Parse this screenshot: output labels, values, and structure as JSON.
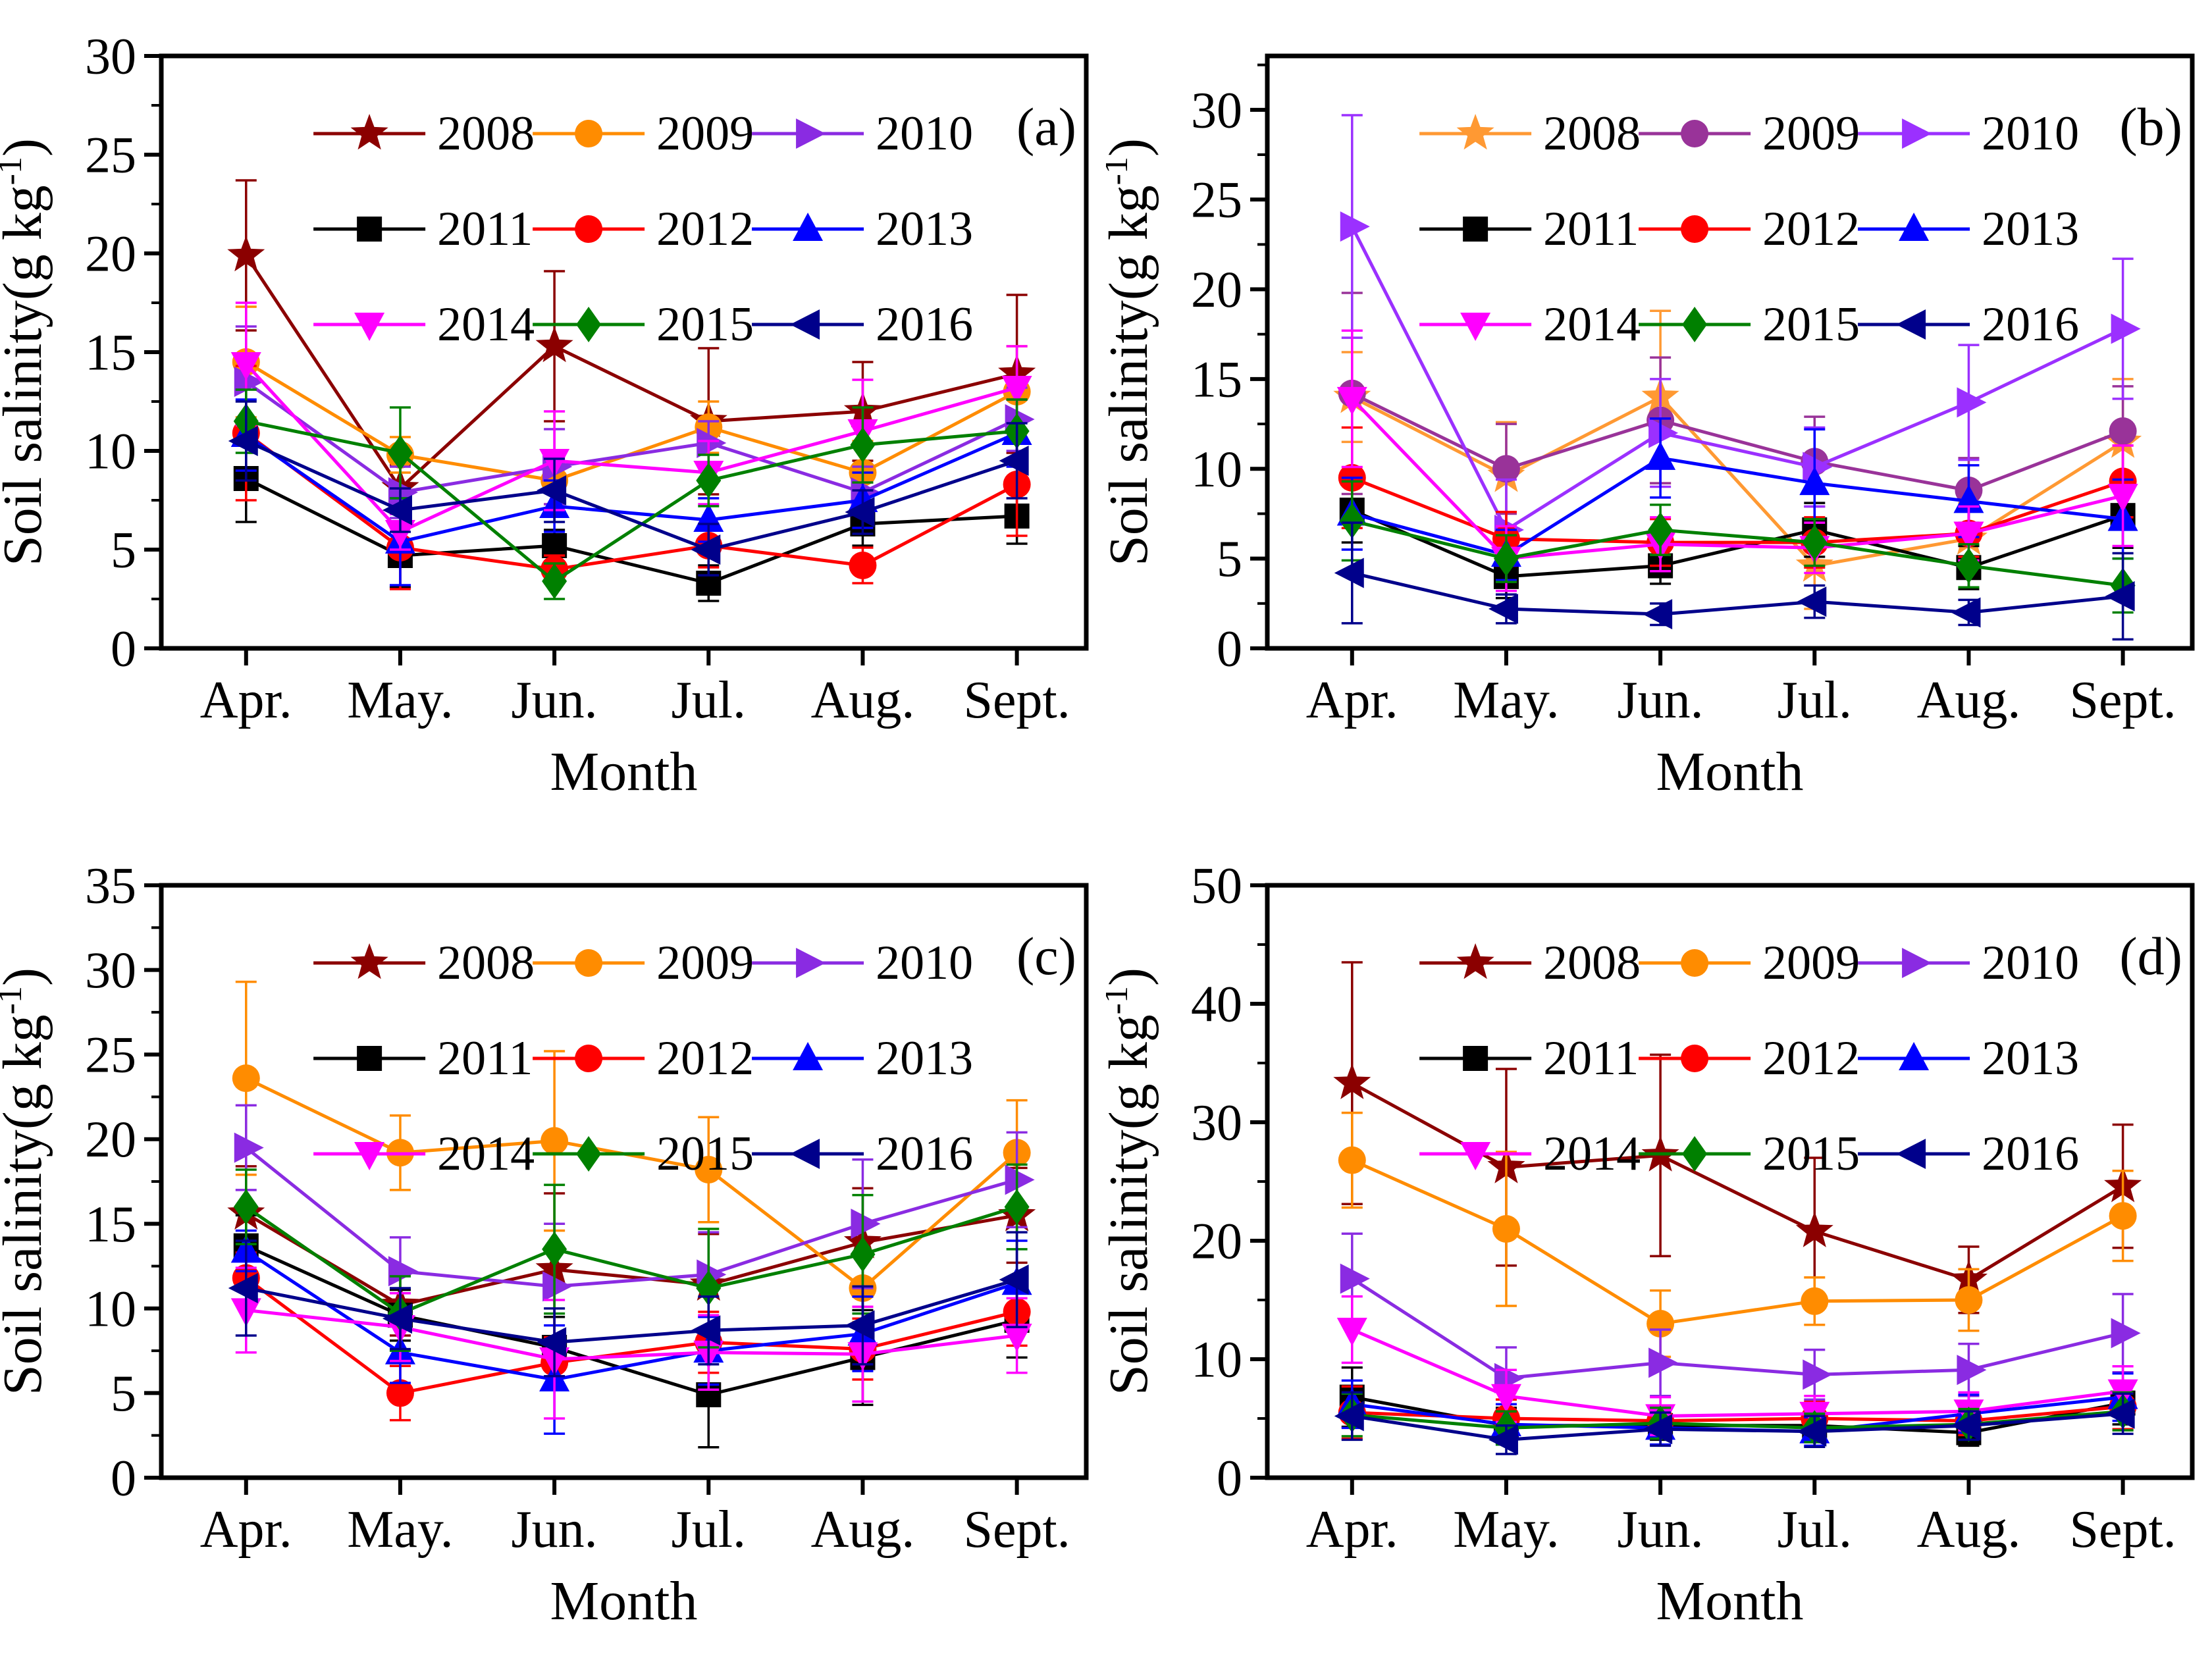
{
  "figure": {
    "background": "#ffffff",
    "months": [
      "Apr.",
      "May.",
      "Jun.",
      "Jul.",
      "Aug.",
      "Sept."
    ],
    "xlabel": "Month",
    "ylabel_main": "Soil salinity(g kg",
    "ylabel_sup": "-1",
    "ylabel_close": ")",
    "ylabel_full": "Soil salinity(g kg⁻¹)",
    "legend_years": [
      "2008",
      "2009",
      "2010",
      "2011",
      "2012",
      "2013",
      "2014",
      "2015",
      "2016"
    ]
  },
  "chart_data": [
    {
      "type": "line",
      "label": "(a)",
      "xlabel": "Month",
      "ylabel": "Soil salinity(g kg⁻¹)",
      "categories": [
        "Apr.",
        "May.",
        "Jun.",
        "Jul.",
        "Aug.",
        "Sept."
      ],
      "ylim": [
        0,
        30
      ],
      "ytick_step": 5,
      "minor_step": 2.5,
      "legend_position": "top-inside",
      "grid": false,
      "series": [
        {
          "name": "2008",
          "color": "#8B0000",
          "marker": "star",
          "values": [
            19.9,
            8.1,
            15.3,
            11.5,
            12.0,
            13.9
          ],
          "err": [
            3.8,
            1.2,
            3.8,
            3.7,
            2.5,
            4.0
          ]
        },
        {
          "name": "2009",
          "color": "#FF8C00",
          "marker": "circle",
          "values": [
            14.5,
            9.8,
            8.5,
            11.2,
            8.9,
            13.0
          ],
          "err": [
            2.8,
            0.9,
            1.2,
            1.3,
            1.6,
            2.3
          ]
        },
        {
          "name": "2010",
          "color": "#8A2BE2",
          "marker": "tri-right",
          "values": [
            13.5,
            7.9,
            9.2,
            10.4,
            7.9,
            11.6
          ],
          "err": [
            2.8,
            1.3,
            1.9,
            1.1,
            1.3,
            1.6
          ]
        },
        {
          "name": "2011",
          "color": "#000000",
          "marker": "square",
          "values": [
            8.6,
            4.7,
            5.2,
            3.3,
            6.3,
            6.7
          ],
          "err": [
            2.2,
            1.6,
            0.8,
            0.9,
            1.1,
            1.4
          ]
        },
        {
          "name": "2012",
          "color": "#FF0000",
          "marker": "circle",
          "values": [
            10.9,
            5.1,
            4.0,
            5.2,
            4.2,
            8.3
          ],
          "err": [
            3.4,
            2.1,
            0.7,
            1.1,
            0.9,
            2.6
          ]
        },
        {
          "name": "2013",
          "color": "#0000FF",
          "marker": "tri-up",
          "values": [
            10.8,
            5.4,
            7.2,
            6.5,
            7.5,
            10.9
          ],
          "err": [
            1.8,
            2.2,
            1.3,
            1.1,
            1.4,
            1.7
          ]
        },
        {
          "name": "2014",
          "color": "#FF00FF",
          "marker": "tri-down",
          "values": [
            14.4,
            5.9,
            9.5,
            8.9,
            11.0,
            13.2
          ],
          "err": [
            3.1,
            0.9,
            2.5,
            1.6,
            2.6,
            2.1
          ]
        },
        {
          "name": "2015",
          "color": "#008000",
          "marker": "diamond",
          "values": [
            11.5,
            9.9,
            3.4,
            8.5,
            10.3,
            11.0
          ],
          "err": [
            1.6,
            2.3,
            0.9,
            1.3,
            1.9,
            1.6
          ]
        },
        {
          "name": "2016",
          "color": "#00008B",
          "marker": "tri-left",
          "values": [
            10.5,
            7.0,
            8.0,
            5.0,
            6.9,
            9.5
          ],
          "err": [
            2.0,
            1.1,
            1.6,
            1.3,
            1.1,
            1.9
          ]
        }
      ]
    },
    {
      "type": "line",
      "label": "(b)",
      "xlabel": "Month",
      "ylabel": "Soil salinity(g kg⁻¹)",
      "categories": [
        "Apr.",
        "May.",
        "Jun.",
        "Jul.",
        "Aug.",
        "Sept."
      ],
      "ylim": [
        0,
        33
      ],
      "ytick_step": 5,
      "minor_step": 2.5,
      "legend_position": "top-inside",
      "grid": false,
      "series": [
        {
          "name": "2008",
          "color": "#FF9933",
          "marker": "star",
          "values": [
            14.0,
            9.6,
            14.0,
            4.6,
            6.1,
            11.5
          ],
          "err": [
            2.5,
            3.0,
            4.8,
            2.4,
            2.0,
            3.5
          ]
        },
        {
          "name": "2009",
          "color": "#993399",
          "marker": "circle",
          "values": [
            14.2,
            10.0,
            12.7,
            10.4,
            8.8,
            12.1
          ],
          "err": [
            5.6,
            2.5,
            3.5,
            2.5,
            1.8,
            2.5
          ]
        },
        {
          "name": "2010",
          "color": "#9B30FF",
          "marker": "tri-right",
          "values": [
            23.5,
            6.6,
            12.0,
            10.1,
            13.7,
            17.8
          ],
          "err": [
            6.2,
            2.8,
            3.0,
            2.2,
            3.2,
            3.9
          ]
        },
        {
          "name": "2011",
          "color": "#000000",
          "marker": "square",
          "values": [
            7.7,
            4.0,
            4.6,
            6.6,
            4.5,
            7.4
          ],
          "err": [
            1.8,
            1.2,
            1.0,
            1.5,
            1.2,
            1.8
          ]
        },
        {
          "name": "2012",
          "color": "#FF0000",
          "marker": "circle",
          "values": [
            9.5,
            6.1,
            5.9,
            5.9,
            6.4,
            9.3
          ],
          "err": [
            2.8,
            1.5,
            1.3,
            1.4,
            1.3,
            2.0
          ]
        },
        {
          "name": "2013",
          "color": "#0000FF",
          "marker": "tri-up",
          "values": [
            7.5,
            5.2,
            10.6,
            9.2,
            8.2,
            7.2
          ],
          "err": [
            2.0,
            1.4,
            2.2,
            3.0,
            2.0,
            2.2
          ]
        },
        {
          "name": "2014",
          "color": "#FF00FF",
          "marker": "tri-down",
          "values": [
            13.9,
            5.0,
            5.8,
            5.6,
            6.4,
            8.5
          ],
          "err": [
            3.8,
            1.8,
            1.5,
            1.4,
            1.5,
            2.8
          ]
        },
        {
          "name": "2015",
          "color": "#008000",
          "marker": "diamond",
          "values": [
            7.1,
            5.0,
            6.6,
            5.9,
            4.6,
            3.5
          ],
          "err": [
            2.2,
            1.3,
            1.4,
            1.3,
            1.2,
            1.5
          ]
        },
        {
          "name": "2016",
          "color": "#00008B",
          "marker": "tri-left",
          "values": [
            4.2,
            2.2,
            1.9,
            2.6,
            2.0,
            2.9
          ],
          "err": [
            2.8,
            0.8,
            0.6,
            0.9,
            0.7,
            2.4
          ]
        }
      ]
    },
    {
      "type": "line",
      "label": "(c)",
      "xlabel": "Month",
      "ylabel": "Soil salinity(g kg⁻¹)",
      "categories": [
        "Apr.",
        "May.",
        "Jun.",
        "Jul.",
        "Aug.",
        "Sept."
      ],
      "ylim": [
        0,
        35
      ],
      "ytick_step": 5,
      "minor_step": 2.5,
      "legend_position": "top-inside",
      "grid": false,
      "series": [
        {
          "name": "2008",
          "color": "#8B0000",
          "marker": "star",
          "values": [
            15.6,
            10.2,
            12.3,
            11.4,
            13.9,
            15.5
          ],
          "err": [
            2.8,
            1.8,
            4.5,
            3.0,
            3.2,
            2.8
          ]
        },
        {
          "name": "2009",
          "color": "#FF8C00",
          "marker": "circle",
          "values": [
            23.6,
            19.2,
            19.9,
            18.2,
            11.2,
            19.2
          ],
          "err": [
            5.7,
            2.2,
            5.3,
            3.1,
            2.0,
            3.1
          ]
        },
        {
          "name": "2010",
          "color": "#8A2BE2",
          "marker": "tri-right",
          "values": [
            19.5,
            12.2,
            11.3,
            12.0,
            15.0,
            17.6
          ],
          "err": [
            2.5,
            2.0,
            3.7,
            2.5,
            3.8,
            2.8
          ]
        },
        {
          "name": "2011",
          "color": "#000000",
          "marker": "square",
          "values": [
            13.7,
            9.6,
            7.7,
            4.9,
            7.1,
            9.3
          ],
          "err": [
            1.8,
            1.5,
            1.8,
            3.1,
            2.8,
            2.2
          ]
        },
        {
          "name": "2012",
          "color": "#FF0000",
          "marker": "circle",
          "values": [
            11.8,
            5.0,
            6.8,
            8.0,
            7.6,
            9.8
          ],
          "err": [
            1.5,
            1.6,
            1.5,
            1.8,
            1.8,
            2.0
          ]
        },
        {
          "name": "2013",
          "color": "#0000FF",
          "marker": "tri-up",
          "values": [
            13.4,
            7.4,
            5.8,
            7.5,
            8.5,
            11.5
          ],
          "err": [
            1.2,
            1.8,
            3.2,
            2.0,
            2.2,
            2.5
          ]
        },
        {
          "name": "2014",
          "color": "#FF00FF",
          "marker": "tri-down",
          "values": [
            9.9,
            8.9,
            7.0,
            7.4,
            7.3,
            8.4
          ],
          "err": [
            2.5,
            2.0,
            3.5,
            2.2,
            2.8,
            2.2
          ]
        },
        {
          "name": "2015",
          "color": "#008000",
          "marker": "diamond",
          "values": [
            16.0,
            9.7,
            13.5,
            11.2,
            13.2,
            16.0
          ],
          "err": [
            2.2,
            2.2,
            3.8,
            3.5,
            3.5,
            2.5
          ]
        },
        {
          "name": "2016",
          "color": "#00008B",
          "marker": "tri-left",
          "values": [
            11.2,
            9.4,
            8.0,
            8.7,
            9.0,
            11.7
          ],
          "err": [
            2.8,
            1.8,
            2.0,
            2.0,
            2.3,
            2.8
          ]
        }
      ]
    },
    {
      "type": "line",
      "label": "(d)",
      "xlabel": "Month",
      "ylabel": "Soil salinity(g kg⁻¹)",
      "categories": [
        "Apr.",
        "May.",
        "Jun.",
        "Jul.",
        "Aug.",
        "Sept."
      ],
      "ylim": [
        0,
        50
      ],
      "ytick_step": 10,
      "minor_step": 5,
      "legend_position": "top-inside",
      "grid": false,
      "series": [
        {
          "name": "2008",
          "color": "#8B0000",
          "marker": "star",
          "values": [
            33.3,
            26.2,
            27.2,
            20.8,
            16.7,
            24.6
          ],
          "err": [
            10.2,
            8.3,
            8.5,
            6.2,
            2.8,
            5.2
          ]
        },
        {
          "name": "2009",
          "color": "#FF8C00",
          "marker": "circle",
          "values": [
            26.8,
            21.0,
            13.0,
            14.9,
            15.0,
            22.1
          ],
          "err": [
            4.0,
            6.5,
            2.8,
            2.0,
            2.6,
            3.8
          ]
        },
        {
          "name": "2010",
          "color": "#8A2BE2",
          "marker": "tri-right",
          "values": [
            16.8,
            8.4,
            9.7,
            8.7,
            9.1,
            12.2
          ],
          "err": [
            3.8,
            2.6,
            2.8,
            2.1,
            2.2,
            3.3
          ]
        },
        {
          "name": "2011",
          "color": "#000000",
          "marker": "square",
          "values": [
            6.8,
            4.4,
            4.4,
            4.4,
            3.8,
            6.3
          ],
          "err": [
            2.5,
            1.5,
            1.2,
            1.3,
            1.1,
            1.8
          ]
        },
        {
          "name": "2012",
          "color": "#FF0000",
          "marker": "circle",
          "values": [
            5.5,
            5.0,
            4.8,
            5.0,
            4.8,
            6.0
          ],
          "err": [
            2.2,
            1.6,
            1.3,
            1.4,
            1.2,
            1.9
          ]
        },
        {
          "name": "2013",
          "color": "#0000FF",
          "marker": "tri-up",
          "values": [
            6.2,
            4.5,
            4.2,
            3.9,
            5.4,
            6.8
          ],
          "err": [
            2.0,
            1.7,
            1.4,
            1.2,
            1.6,
            2.0
          ]
        },
        {
          "name": "2014",
          "color": "#FF00FF",
          "marker": "tri-down",
          "values": [
            12.5,
            6.9,
            5.2,
            5.4,
            5.6,
            7.3
          ],
          "err": [
            2.8,
            2.2,
            1.6,
            1.5,
            1.6,
            2.1
          ]
        },
        {
          "name": "2015",
          "color": "#008000",
          "marker": "diamond",
          "values": [
            5.3,
            4.2,
            4.6,
            4.2,
            4.5,
            5.6
          ],
          "err": [
            1.8,
            1.4,
            1.3,
            1.2,
            1.3,
            1.6
          ]
        },
        {
          "name": "2016",
          "color": "#00008B",
          "marker": "tri-left",
          "values": [
            5.2,
            3.2,
            4.1,
            3.9,
            4.4,
            5.4
          ],
          "err": [
            2.0,
            1.2,
            1.4,
            1.3,
            1.2,
            1.7
          ]
        }
      ]
    }
  ]
}
